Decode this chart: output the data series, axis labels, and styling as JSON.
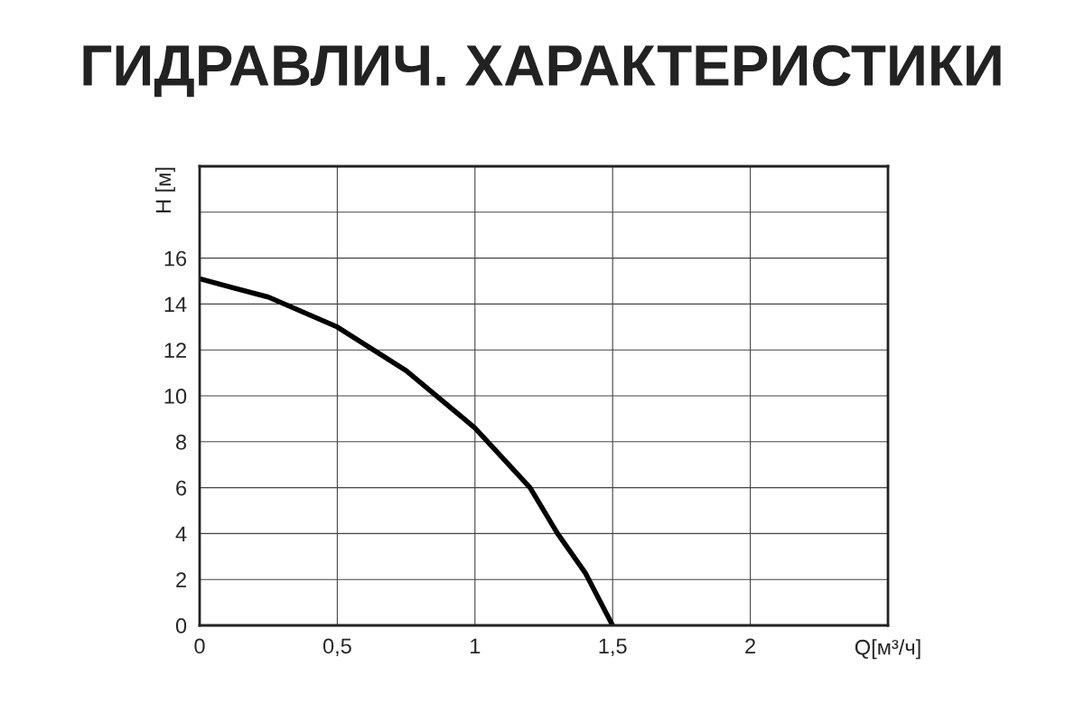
{
  "chart_data": {
    "type": "line",
    "title": "ГИДРАВЛИЧ. ХАРАКТЕРИСТИКИ",
    "xlabel": "Q[м³/ч]",
    "ylabel": "H [м]",
    "x": [
      0,
      0.25,
      0.5,
      0.75,
      1.0,
      1.2,
      1.3,
      1.4,
      1.5
    ],
    "series": [
      {
        "color": "#000000",
        "values": [
          15.1,
          14.3,
          13.0,
          11.1,
          8.6,
          6.0,
          4.0,
          2.3,
          0
        ]
      }
    ],
    "xlim": [
      0,
      2.5
    ],
    "ylim": [
      0,
      20
    ],
    "xticks": [
      0,
      {
        "value": 0.5,
        "label": "0,5"
      },
      1,
      {
        "value": 1.5,
        "label": "1,5"
      },
      2,
      {
        "value": 2.5,
        "label": null
      }
    ],
    "yticks": [
      0,
      2,
      4,
      6,
      8,
      10,
      12,
      14,
      16,
      {
        "value": 18,
        "label": null
      },
      {
        "value": 20,
        "label": null
      }
    ],
    "grid": true,
    "marker": "none",
    "line_style": "solid"
  }
}
